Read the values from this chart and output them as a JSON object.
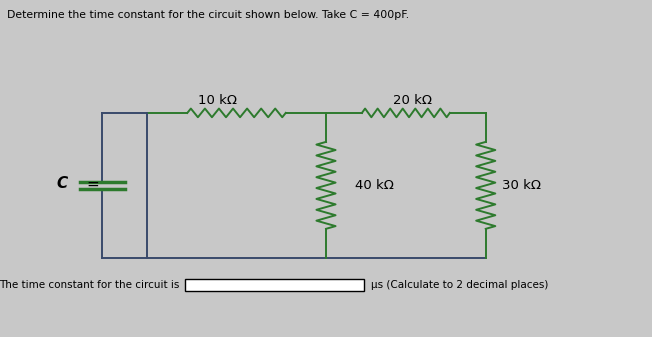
{
  "title": "Determine the time constant for the circuit shown below. Take C = 400pF.",
  "bg_color": "#c8c8c8",
  "wire_color": "#3a4a6b",
  "resistor_color": "#2d7a2d",
  "capacitor_color": "#2d7a2d",
  "text_color": "#000000",
  "label_10k": "10 kΩ",
  "label_20k": "20 kΩ",
  "label_40k": "40 kΩ",
  "label_30k": "30 kΩ",
  "label_C": "C",
  "bottom_text": "The time constant for the circuit is",
  "bottom_unit": "μs (Calculate to 2 decimal places)",
  "fig_width": 6.52,
  "fig_height": 3.37
}
